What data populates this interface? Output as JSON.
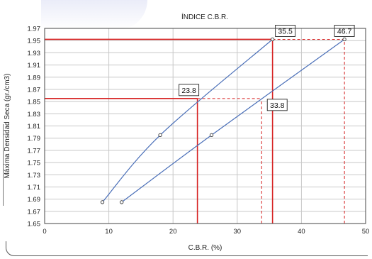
{
  "chart_data": {
    "type": "line",
    "title": "ÍNDICE C.B.R.",
    "xlabel": "C.B.R. (%)",
    "ylabel": "Máxima Densidad Seca (gr./cm3)",
    "xlim": [
      0,
      50
    ],
    "ylim": [
      1.65,
      1.97
    ],
    "xticks": [
      0,
      10,
      20,
      30,
      40,
      50
    ],
    "yticks": [
      1.65,
      1.67,
      1.69,
      1.71,
      1.73,
      1.75,
      1.77,
      1.79,
      1.81,
      1.83,
      1.85,
      1.87,
      1.89,
      1.91,
      1.93,
      1.95,
      1.97
    ],
    "grid": true,
    "colors": {
      "curve": "#4a6fb8",
      "reference": "#d62020"
    },
    "series": [
      {
        "x": [
          9,
          18,
          35.5
        ],
        "y": [
          1.685,
          1.795,
          1.952
        ]
      },
      {
        "x": [
          12,
          26,
          46.7
        ],
        "y": [
          1.685,
          1.795,
          1.952
        ]
      }
    ],
    "reference_lines": [
      {
        "y": 1.952,
        "x_end": 35.5,
        "style": "solid"
      },
      {
        "y": 1.952,
        "x_from": 35.5,
        "x_end": 46.7,
        "style": "dashed"
      },
      {
        "y": 1.855,
        "x_end": 23.8,
        "style": "solid"
      },
      {
        "y": 1.855,
        "x_from": 23.8,
        "x_end": 33.8,
        "style": "dashed"
      },
      {
        "x": 35.5,
        "y_end": 1.952,
        "style": "solid"
      },
      {
        "x": 23.8,
        "y_end": 1.855,
        "style": "solid"
      },
      {
        "x": 46.7,
        "y_end": 1.952,
        "style": "dashed"
      },
      {
        "x": 33.8,
        "y_end": 1.855,
        "style": "dashed"
      }
    ],
    "annotations": [
      {
        "text": "35.5",
        "x": 35.5,
        "y": 1.952,
        "anchor": "above-right"
      },
      {
        "text": "46.7",
        "x": 46.7,
        "y": 1.952,
        "anchor": "above"
      },
      {
        "text": "23.8",
        "x": 23.8,
        "y": 1.855,
        "anchor": "above-left"
      },
      {
        "text": "33.8",
        "x": 33.8,
        "y": 1.855,
        "anchor": "below-right"
      }
    ]
  }
}
